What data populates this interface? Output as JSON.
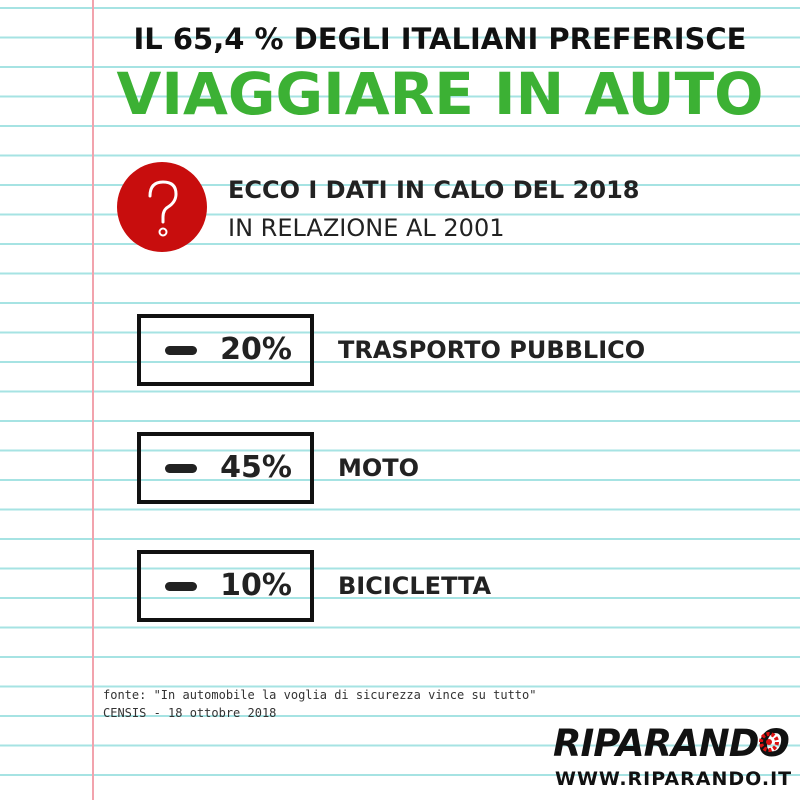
{
  "header": {
    "line1": "IL 65,4 % DEGLI ITALIANI PREFERISCE",
    "line2": "VIAGGIARE IN AUTO"
  },
  "intro": {
    "line1": "ECCO I DATI IN CALO DEL 2018",
    "line2": "IN RELAZIONE AL 2001"
  },
  "items": [
    {
      "value": "20%",
      "label": "TRASPORTO PUBBLICO"
    },
    {
      "value": "45%",
      "label": "MOTO"
    },
    {
      "value": "10%",
      "label": "BICICLETTA"
    }
  ],
  "source": {
    "line1": "fonte: \"In automobile la voglia di sicurezza vince su tutto\"",
    "line2": "CENSIS - 18 ottobre 2018"
  },
  "logo": {
    "name": "RIPARANDO",
    "url": "WWW.RIPARANDO.IT"
  }
}
